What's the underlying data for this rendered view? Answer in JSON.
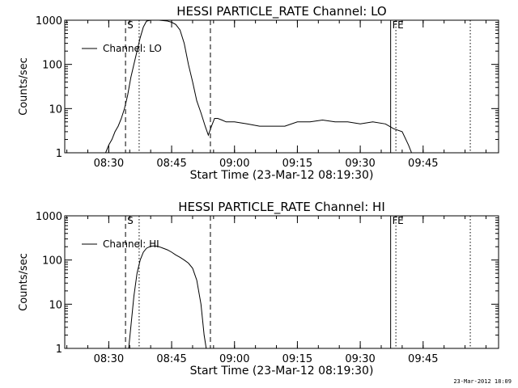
{
  "footer_timestamp": "23-Mar-2012 18:09",
  "chart_data": [
    {
      "type": "line",
      "title": "HESSI PARTICLE_RATE Channel: LO",
      "xlabel": "Start Time (23-Mar-12 08:19:30)",
      "ylabel": "Counts/sec",
      "xlim": [
        "08:19:30",
        "10:03:00"
      ],
      "ylim": [
        1,
        1000
      ],
      "yscale": "log",
      "x_ticks": [
        "08:30",
        "08:45",
        "09:00",
        "09:15",
        "09:30",
        "09:45"
      ],
      "y_ticks": [
        "1",
        "10",
        "100",
        "1000"
      ],
      "legend": {
        "entry": "Channel: LO",
        "placement": "top-left"
      },
      "markers": [
        {
          "label": "S",
          "time": "08:34:00",
          "style": "dashed"
        },
        {
          "label": "",
          "time": "08:37:15",
          "style": "dotted"
        },
        {
          "label": "",
          "time": "08:54:15",
          "style": "dashed"
        },
        {
          "label": "F",
          "time": "09:37:15",
          "style": "solid"
        },
        {
          "label": "E",
          "time": "09:38:30",
          "style": "dotted"
        },
        {
          "label": "",
          "time": "09:56:15",
          "style": "dotted"
        }
      ],
      "series": [
        {
          "name": "Channel: LO",
          "x": [
            "08:19:30",
            "08:20:15",
            "08:21:00",
            "08:22:00",
            "08:23:00",
            "08:24:00",
            "08:25:00",
            "08:26:00",
            "08:27:00",
            "08:27:45",
            "08:28:30",
            "08:29:15",
            "08:30:00",
            "08:30:45",
            "08:31:30",
            "08:32:15",
            "08:33:00",
            "08:33:45",
            "08:34:30",
            "08:35:15",
            "08:36:00",
            "08:36:45",
            "08:37:30",
            "08:38:15",
            "08:39:00",
            "08:40:00",
            "08:41:00",
            "08:42:00",
            "08:43:00",
            "08:44:00",
            "08:45:00",
            "08:46:00",
            "08:47:00",
            "08:48:00",
            "08:49:00",
            "08:50:00",
            "08:51:00",
            "08:52:00",
            "08:53:00",
            "08:53:45",
            "08:54:30",
            "08:55:15",
            "08:56:00",
            "08:57:00",
            "08:58:00",
            "09:00:00",
            "09:03:00",
            "09:06:00",
            "09:09:00",
            "09:12:00",
            "09:15:00",
            "09:18:00",
            "09:21:00",
            "09:24:00",
            "09:27:00",
            "09:30:00",
            "09:33:00",
            "09:36:00",
            "09:38:00",
            "09:40:00",
            "09:41:30",
            "09:42:15",
            "09:43:00"
          ],
          "values": [
            1,
            1,
            1,
            1,
            1,
            1,
            1,
            1,
            1,
            1,
            1,
            1,
            1.5,
            2,
            3,
            4,
            6,
            10,
            20,
            50,
            100,
            200,
            400,
            700,
            950,
            1000,
            1000,
            1000,
            980,
            960,
            900,
            800,
            600,
            300,
            100,
            40,
            15,
            8,
            4,
            2.5,
            4,
            6,
            6,
            5.5,
            5,
            5,
            4.5,
            4,
            4,
            4,
            5,
            5,
            5.5,
            5,
            5,
            4.5,
            5,
            4.5,
            3.5,
            3,
            1.5,
            1,
            1
          ]
        }
      ]
    },
    {
      "type": "line",
      "title": "HESSI PARTICLE_RATE Channel: HI",
      "xlabel": "Start Time (23-Mar-12 08:19:30)",
      "ylabel": "Counts/sec",
      "xlim": [
        "08:19:30",
        "10:03:00"
      ],
      "ylim": [
        1,
        1000
      ],
      "yscale": "log",
      "x_ticks": [
        "08:30",
        "08:45",
        "09:00",
        "09:15",
        "09:30",
        "09:45"
      ],
      "y_ticks": [
        "1",
        "10",
        "100",
        "1000"
      ],
      "legend": {
        "entry": "Channel: HI",
        "placement": "top-left"
      },
      "markers": [
        {
          "label": "S",
          "time": "08:34:00",
          "style": "dashed"
        },
        {
          "label": "",
          "time": "08:37:15",
          "style": "dotted"
        },
        {
          "label": "",
          "time": "08:54:15",
          "style": "dashed"
        },
        {
          "label": "F",
          "time": "09:37:15",
          "style": "solid"
        },
        {
          "label": "E",
          "time": "09:38:30",
          "style": "dotted"
        },
        {
          "label": "",
          "time": "09:56:15",
          "style": "dotted"
        }
      ],
      "series": [
        {
          "name": "Channel: HI",
          "x": [
            "08:34:45",
            "08:35:15",
            "08:36:00",
            "08:36:45",
            "08:37:30",
            "08:38:15",
            "08:39:00",
            "08:40:00",
            "08:41:00",
            "08:42:00",
            "08:43:00",
            "08:44:00",
            "08:45:00",
            "08:46:00",
            "08:47:00",
            "08:48:00",
            "08:49:00",
            "08:50:00",
            "08:51:00",
            "08:52:00",
            "08:52:45",
            "08:53:15"
          ],
          "values": [
            1,
            3,
            15,
            50,
            100,
            150,
            185,
            205,
            210,
            200,
            185,
            170,
            150,
            130,
            115,
            100,
            85,
            65,
            35,
            10,
            2,
            1
          ]
        }
      ]
    }
  ]
}
